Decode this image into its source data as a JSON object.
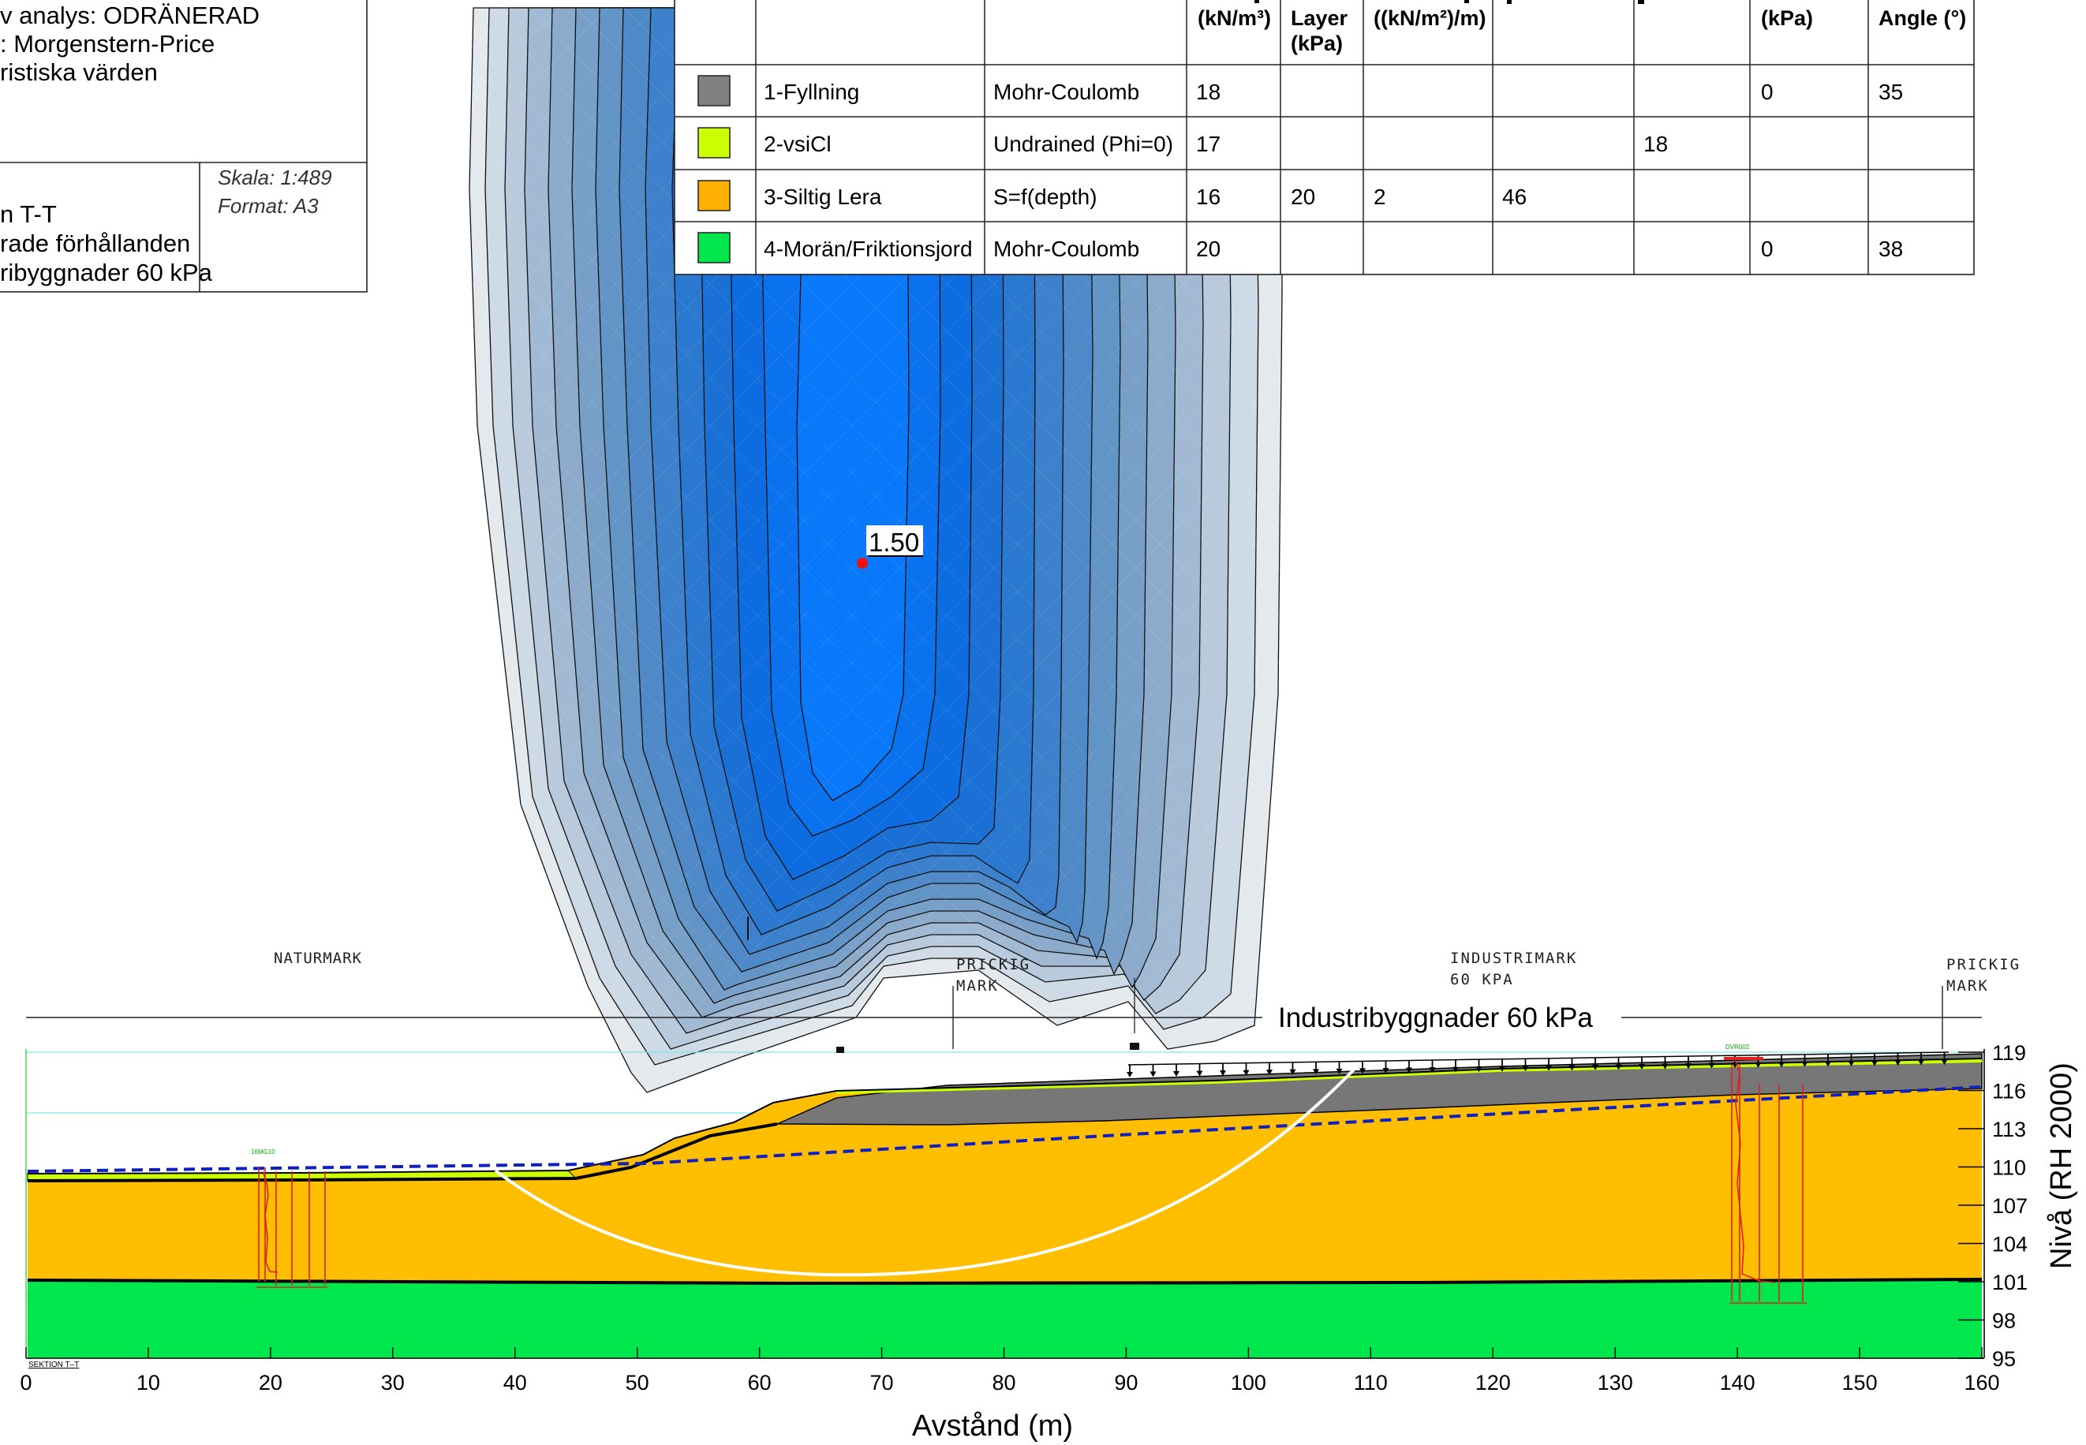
{
  "info_box": {
    "lines": [
      "v analys: ODRÄNERAD",
      ": Morgenstern-Price",
      "ristiska värden"
    ],
    "scale": "Skala: 1:489",
    "format": "Format: A3",
    "title_lines": [
      "n T-T",
      "rade förhållanden",
      "ribyggnader 60 kPa"
    ]
  },
  "material_table": {
    "headers": [
      {
        "lines": [
          "(kN/m³)"
        ]
      },
      {
        "lines": [
          "Layer",
          "(kPa)"
        ]
      },
      {
        "lines": [
          "((kN/m²)/m)"
        ]
      },
      {
        "lines": [
          "(kPa)"
        ]
      },
      {
        "lines": [
          "Angle (°)"
        ]
      }
    ],
    "rows": [
      {
        "color": "#808080",
        "name": "1-Fyllning",
        "model": "Mohr-Coulomb",
        "unit_weight": "18",
        "top_layer": "",
        "rate": "",
        "cmax": "",
        "cu": "",
        "cohesion": "0",
        "phi": "35"
      },
      {
        "color": "#ccff00",
        "name": "2-vsiCl",
        "model": "Undrained (Phi=0)",
        "unit_weight": "17",
        "top_layer": "",
        "rate": "",
        "cmax": "",
        "cu": "18",
        "cohesion": "",
        "phi": ""
      },
      {
        "color": "#ffb000",
        "name": "3-Siltig Lera",
        "model": "S=f(depth)",
        "unit_weight": "16",
        "top_layer": "20",
        "rate": "2",
        "cmax": "46",
        "cu": "",
        "cohesion": "",
        "phi": ""
      },
      {
        "color": "#00e64d",
        "name": "4-Morän/Friktionsjord",
        "model": "Mohr-Coulomb",
        "unit_weight": "20",
        "top_layer": "",
        "rate": "",
        "cmax": "",
        "cu": "",
        "cohesion": "0",
        "phi": "38"
      }
    ]
  },
  "factor_of_safety": "1.50",
  "annotations": {
    "naturmark": "NATURMARK",
    "prickig1": [
      "PRICKIG",
      "MARK"
    ],
    "industrimark": [
      "INDUSTRIMARK",
      "60 KPA"
    ],
    "prickig2": [
      "PRICKIG",
      "MARK"
    ],
    "load_label": "Industribyggnader 60 kPa",
    "section": "SEKTION T–T"
  },
  "chart_data": {
    "type": "cross-section",
    "xlabel": "Avstånd (m)",
    "ylabel": "Nivå (RH 2000)",
    "xlim": [
      0,
      160
    ],
    "ylim": [
      95,
      120
    ],
    "x_ticks": [
      0,
      10,
      20,
      30,
      40,
      50,
      60,
      70,
      80,
      90,
      100,
      110,
      120,
      130,
      140,
      150,
      160
    ],
    "y_ticks": [
      95,
      98,
      101,
      104,
      107,
      110,
      113,
      116,
      119
    ],
    "ground_surface": [
      [
        0,
        110
      ],
      [
        20,
        110.1
      ],
      [
        40,
        110.3
      ],
      [
        45,
        110.3
      ],
      [
        50,
        111.2
      ],
      [
        52,
        112
      ],
      [
        57,
        112.8
      ],
      [
        60,
        113.6
      ],
      [
        65,
        114.7
      ],
      [
        80,
        115.5
      ],
      [
        90,
        115.7
      ],
      [
        100,
        116.1
      ],
      [
        120,
        116.9
      ],
      [
        140,
        117.8
      ],
      [
        160,
        118.3
      ]
    ],
    "fill_bottom": [
      [
        60,
        112.9
      ],
      [
        80,
        113.6
      ],
      [
        100,
        114.3
      ],
      [
        120,
        115.1
      ],
      [
        140,
        115.9
      ],
      [
        160,
        116.6
      ]
    ],
    "clay_moraine_boundary": [
      [
        0,
        101.5
      ],
      [
        80,
        101.3
      ],
      [
        160,
        101.6
      ]
    ],
    "groundwater": [
      [
        0,
        110.3
      ],
      [
        50,
        110.8
      ],
      [
        160,
        117.1
      ]
    ],
    "slip_surface": [
      [
        38.4,
        110.3
      ],
      [
        50,
        104.9
      ],
      [
        60,
        102.6
      ],
      [
        70,
        101.7
      ],
      [
        80,
        102.2
      ],
      [
        90,
        104.5
      ],
      [
        100,
        109.3
      ],
      [
        110,
        117.1
      ]
    ],
    "load": {
      "from": 90,
      "to": 157,
      "value_kpa": 60
    }
  }
}
